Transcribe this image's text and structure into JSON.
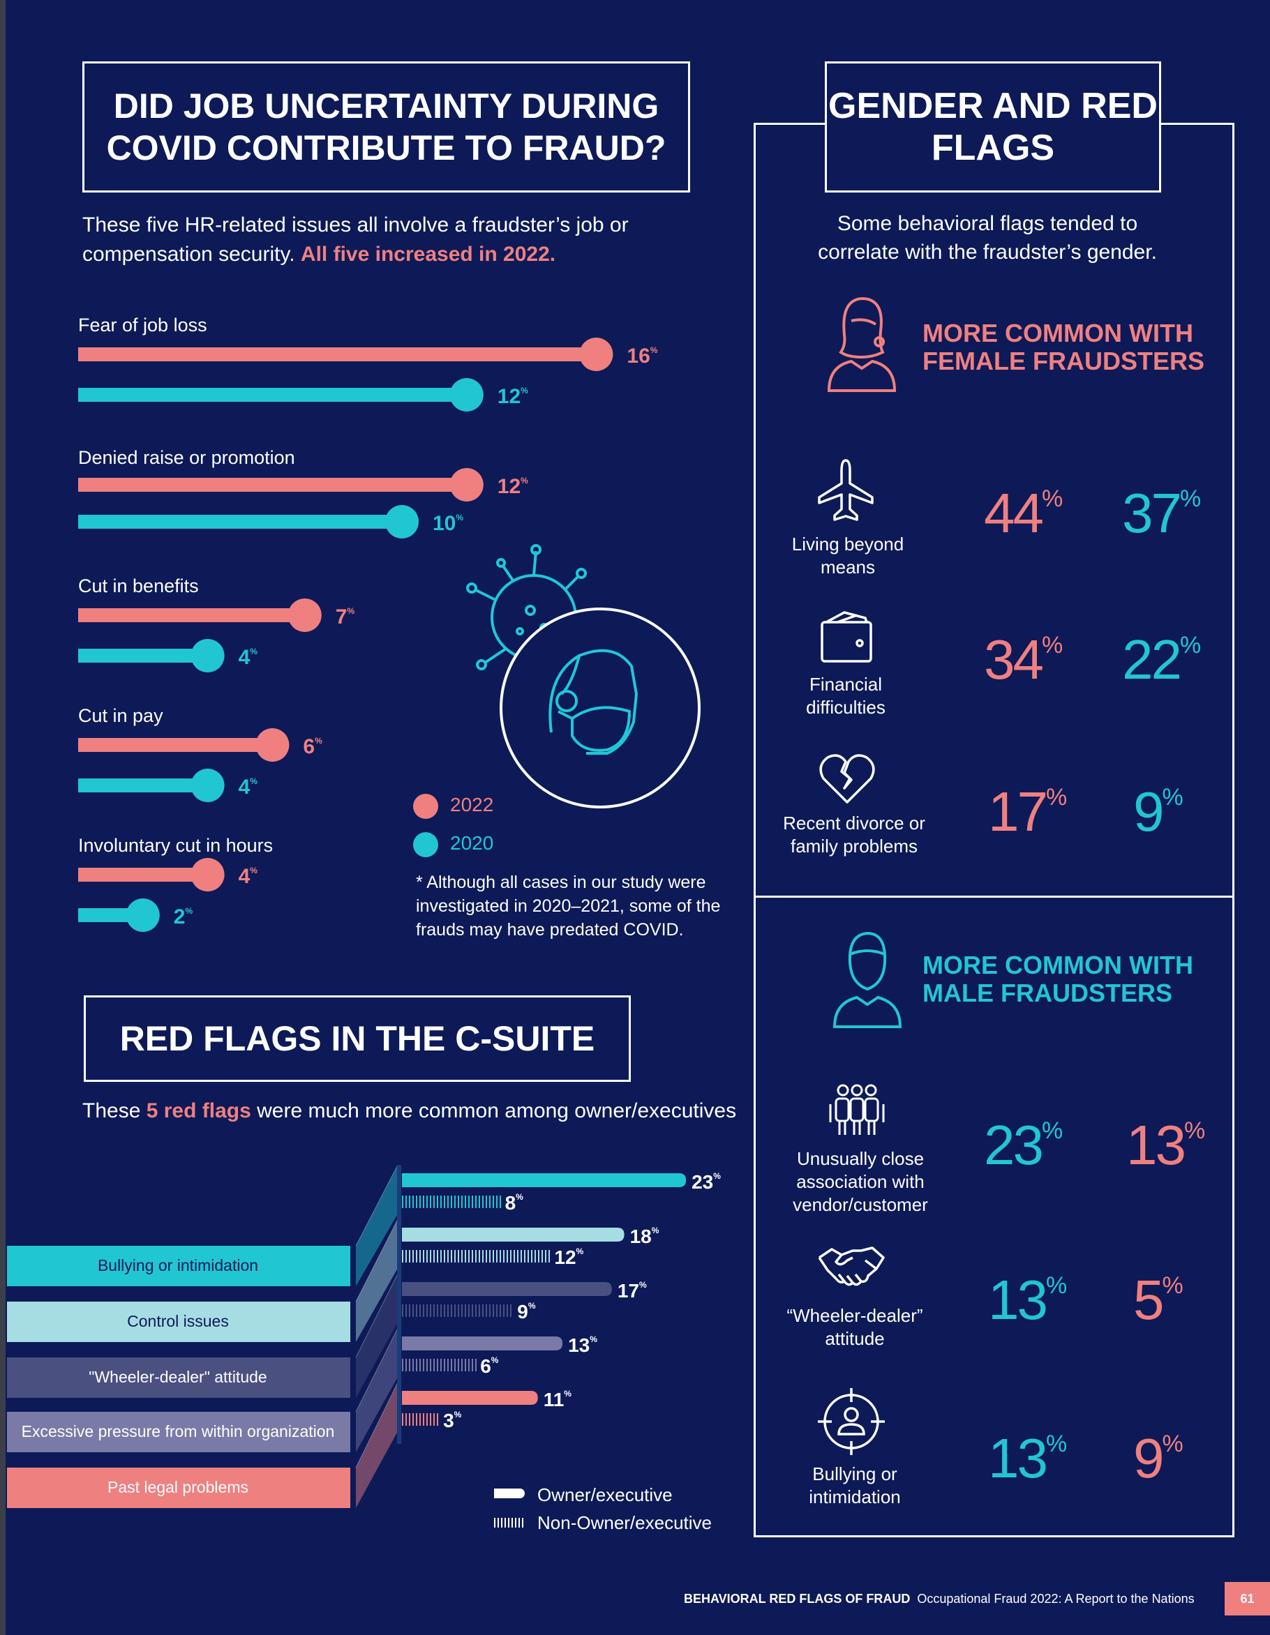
{
  "colors": {
    "bg": "#0d1a57",
    "pink": "#f08080",
    "teal": "#1ec8d8",
    "cyan_c": "#21c6d3",
    "light": "#a6dde3",
    "slate": "#4a5080",
    "mauve": "#7a7aa6",
    "salmon": "#ef8080"
  },
  "covid": {
    "title": "DID JOB UNCERTAINTY DURING COVID CONTRIBUTE TO FRAUD?",
    "intro_plain": "These five HR-related issues all involve a fraudster’s job or compensation security. ",
    "intro_highlight": "All five increased in 2022.",
    "legend": {
      "y2022": "2022",
      "y2020": "2020"
    },
    "note": "* Although all cases in our study were investigated in 2020–2021, some of the frauds may have predated COVID.",
    "icon": "virus-mask-icon"
  },
  "chart_data": [
    {
      "type": "bar",
      "title": "DID JOB UNCERTAINTY DURING COVID CONTRIBUTE TO FRAUD?",
      "categories": [
        "Fear of job loss",
        "Denied raise or promotion",
        "Cut in benefits",
        "Cut in pay",
        "Involuntary cut in hours"
      ],
      "series": [
        {
          "name": "2022",
          "values": [
            16,
            12,
            7,
            6,
            4
          ],
          "labels": [
            "16%",
            "12%",
            "7%",
            "6%",
            "4%"
          ]
        },
        {
          "name": "2020",
          "values": [
            12,
            10,
            4,
            4,
            2
          ],
          "labels": [
            "12%",
            "10%",
            "4%",
            "4%",
            "2%"
          ]
        }
      ],
      "unit": "%"
    },
    {
      "type": "bar",
      "title": "RED FLAGS IN THE C-SUITE",
      "categories": [
        "Bullying or intimidation",
        "Control issues",
        "\"Wheeler-dealer\" attitude",
        "Excessive pressure from within organization",
        "Past legal problems"
      ],
      "series": [
        {
          "name": "Owner/executive",
          "values": [
            23,
            18,
            17,
            13,
            11
          ],
          "labels": [
            "23%",
            "18%",
            "17%",
            "13%",
            "11%"
          ]
        },
        {
          "name": "Non-Owner/executive",
          "values": [
            8,
            12,
            9,
            6,
            3
          ],
          "labels": [
            "8%",
            "12%",
            "9%",
            "6%",
            "3%"
          ]
        }
      ],
      "unit": "%"
    },
    {
      "type": "table",
      "title": "GENDER AND RED FLAGS",
      "groups": [
        {
          "name": "MORE COMMON WITH FEMALE FRAUDSTERS",
          "rows": [
            {
              "flag": "Living beyond means",
              "female": 44,
              "male": 37
            },
            {
              "flag": "Financial difficulties",
              "female": 34,
              "male": 22
            },
            {
              "flag": "Recent divorce or family problems",
              "female": 17,
              "male": 9
            }
          ]
        },
        {
          "name": "MORE COMMON WITH MALE FRAUDSTERS",
          "rows": [
            {
              "flag": "Unusually close association with vendor/customer",
              "male": 23,
              "female": 13
            },
            {
              "flag": "“Wheeler-dealer” attitude",
              "male": 13,
              "female": 5
            },
            {
              "flag": "Bullying or intimidation",
              "male": 13,
              "female": 9
            }
          ]
        }
      ],
      "unit": "%"
    }
  ],
  "csuite": {
    "title": "RED FLAGS IN THE C-SUITE",
    "intro_a": "These ",
    "intro_b": "5 red flags",
    "intro_c": " were much more common among owner/executives",
    "bands": [
      "Bullying or intimidation",
      "Control issues",
      "\"Wheeler-dealer\" attitude",
      "Excessive pressure from within organization",
      "Past legal problems"
    ],
    "legend_owner": "Owner/executive",
    "legend_non": "Non-Owner/executive"
  },
  "gender": {
    "title": "GENDER AND RED FLAGS",
    "subtitle": "Some behavioral flags tended to correlate with the fraudster’s gender.",
    "female_head_1": "MORE COMMON WITH",
    "female_head_2": "FEMALE FRAUDSTERS",
    "male_head_1": "MORE COMMON WITH",
    "male_head_2": "MALE FRAUDSTERS",
    "female_rows": [
      {
        "caption": "Living beyond means",
        "a": "44",
        "b": "37",
        "icon": "airplane-icon"
      },
      {
        "caption": "Financial difficulties",
        "a": "34",
        "b": "22",
        "icon": "wallet-icon"
      },
      {
        "caption": "Recent divorce or family problems",
        "a": "17",
        "b": "9",
        "icon": "broken-heart-icon"
      }
    ],
    "male_rows": [
      {
        "caption": "Unusually close association with vendor/customer",
        "a": "23",
        "b": "13",
        "icon": "group-people-icon"
      },
      {
        "caption": "“Wheeler-dealer” attitude",
        "a": "13",
        "b": "5",
        "icon": "handshake-icon"
      },
      {
        "caption": "Bullying or intimidation",
        "a": "13",
        "b": "9",
        "icon": "target-person-icon"
      }
    ],
    "pct": "%"
  },
  "footer": {
    "bold": "BEHAVIORAL RED FLAGS OF FRAUD",
    "rest": "  Occupational Fraud 2022: A Report to the Nations",
    "page": "61"
  }
}
